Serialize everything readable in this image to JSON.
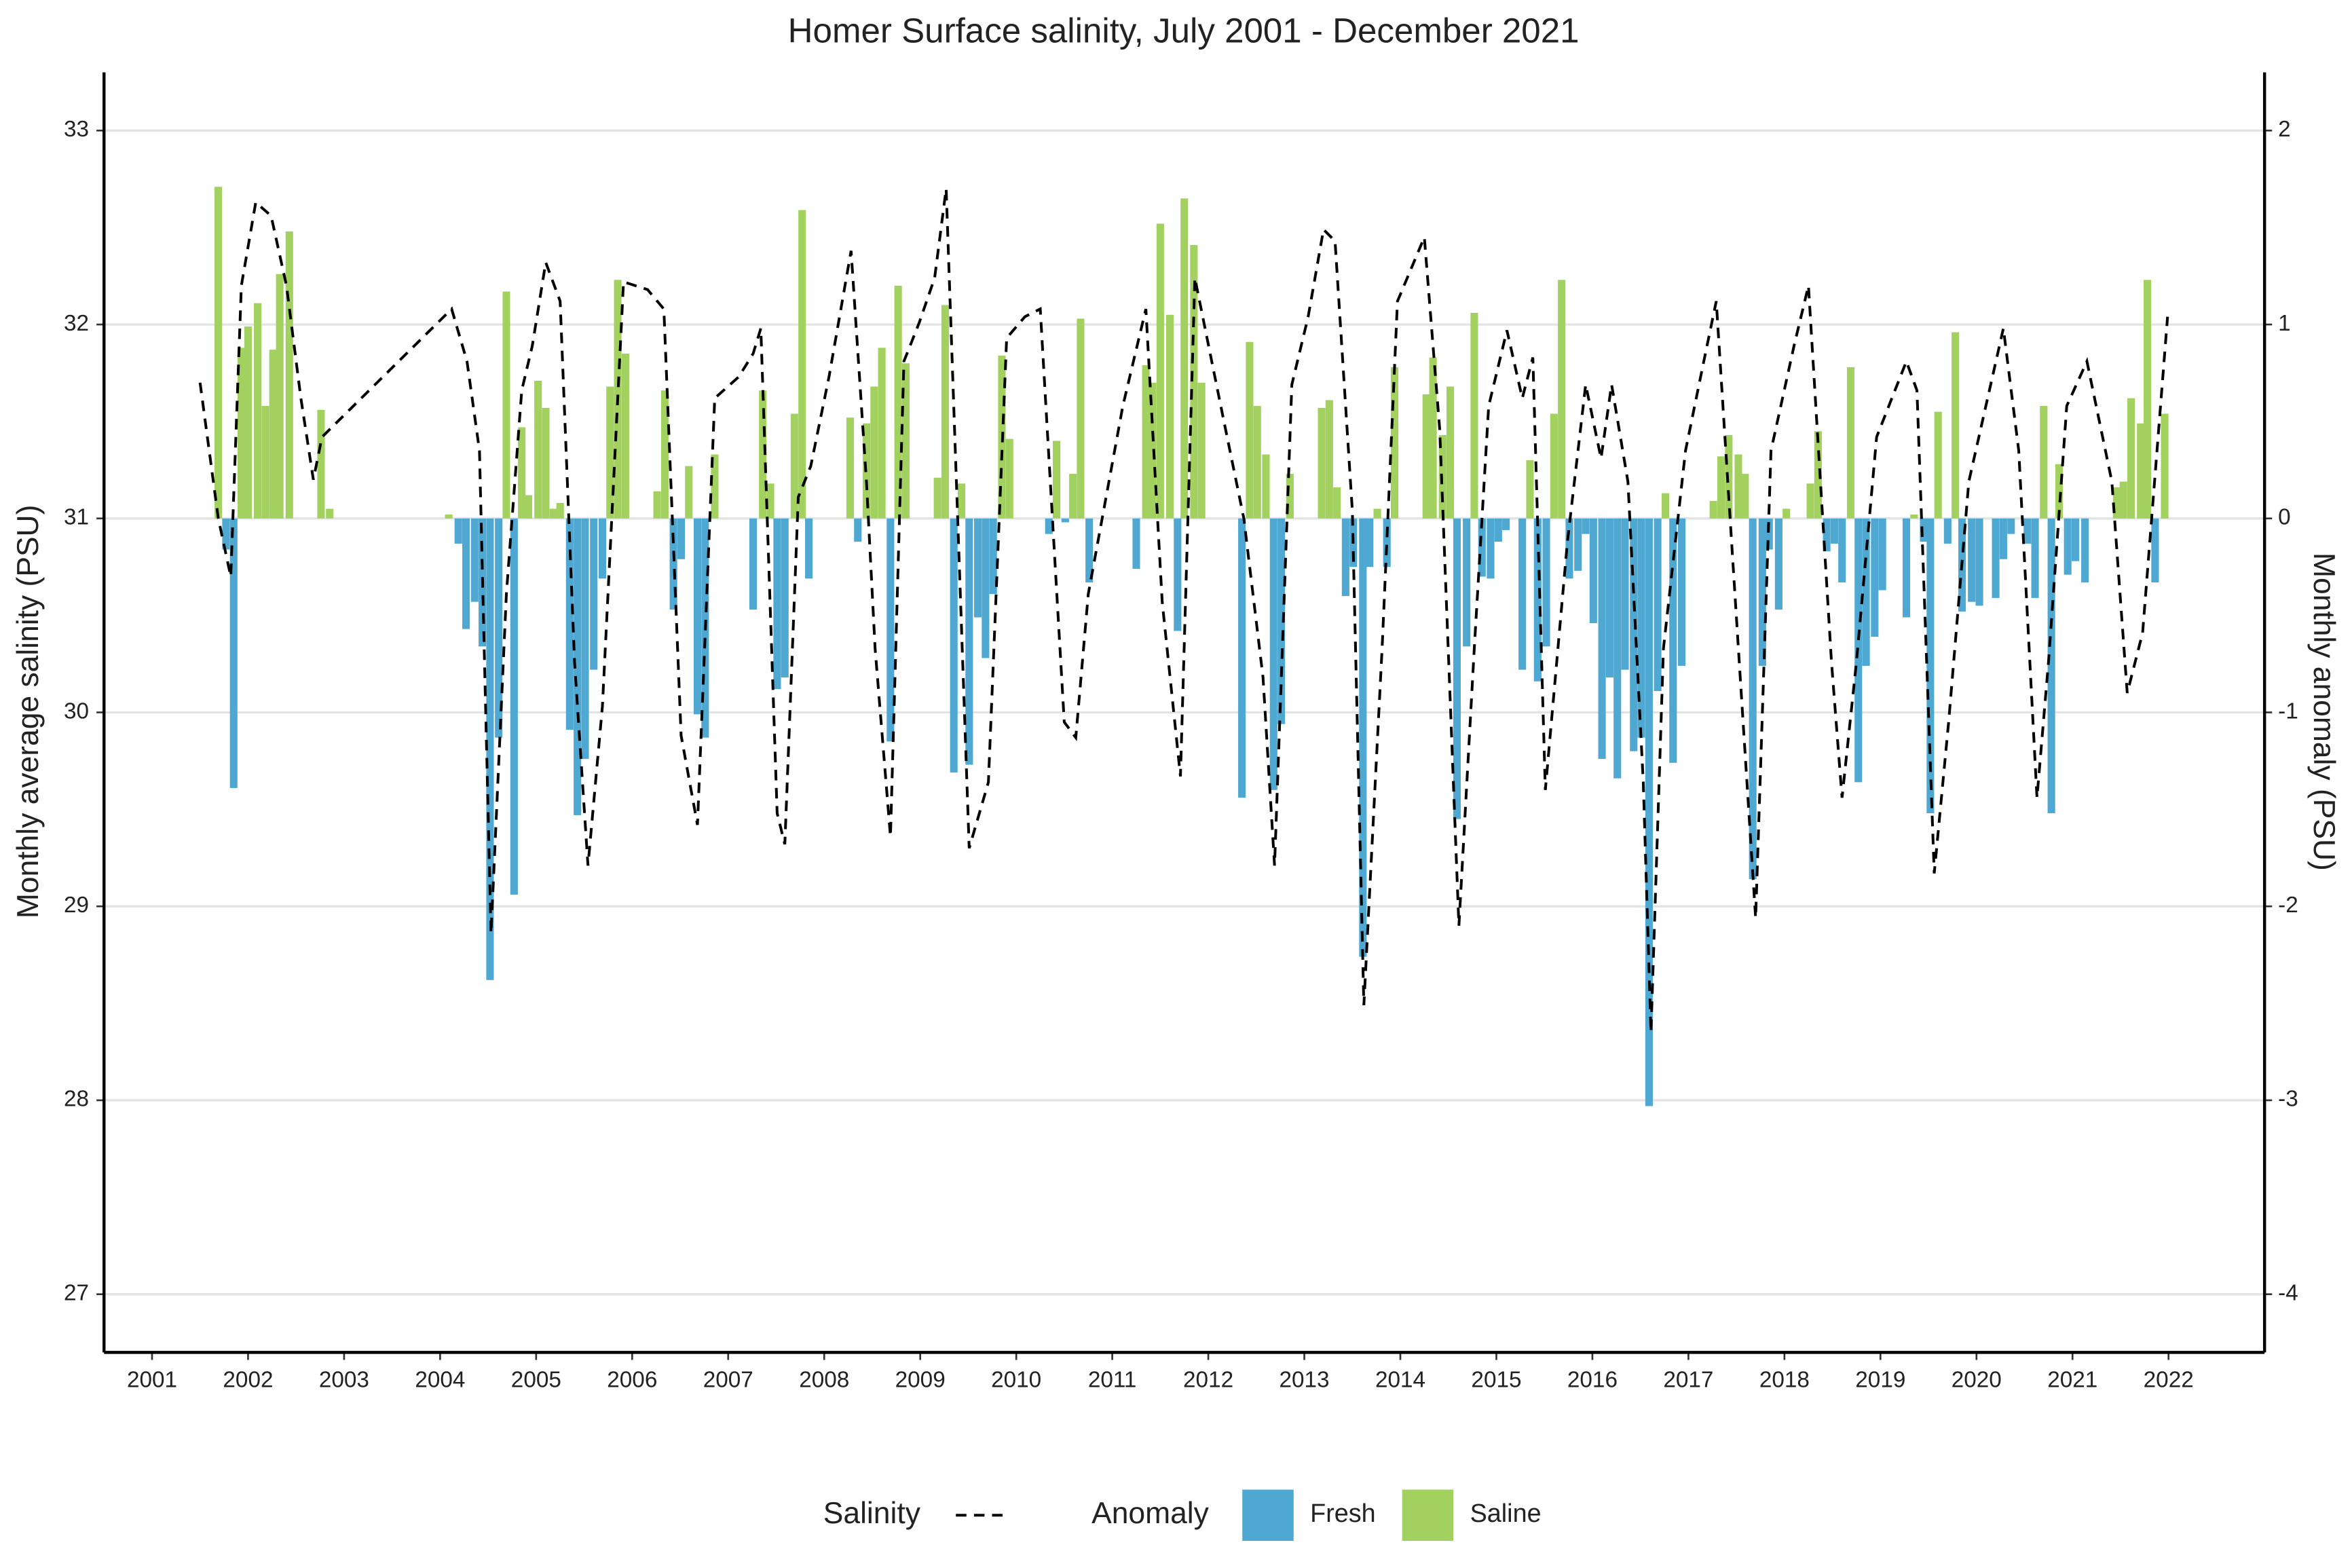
{
  "chart_data": {
    "type": "bar",
    "title": "Homer Surface salinity, July 2001 - December 2021",
    "ylabel": "Monthly average salinity (PSU)",
    "y2label": "Monthly anomaly (PSU)",
    "anomaly_legend_title": "Anomaly",
    "xlim": [
      2000.5,
      2023.0
    ],
    "xticks": [
      2001,
      2002,
      2003,
      2004,
      2005,
      2006,
      2007,
      2008,
      2009,
      2010,
      2011,
      2012,
      2013,
      2014,
      2015,
      2016,
      2017,
      2018,
      2019,
      2020,
      2021,
      2022
    ],
    "ylim": [
      26.7,
      33.3
    ],
    "yticks": [
      27,
      28,
      29,
      30,
      31,
      32,
      33
    ],
    "y2lim": [
      -4.3,
      2.3
    ],
    "y2ticks": [
      -4,
      -3,
      -2,
      -1,
      0,
      1,
      2
    ],
    "grid": true,
    "legend_position": "bottom",
    "series": [
      {
        "name": "Salinity",
        "type": "line",
        "color": "#000000",
        "dashed": true,
        "x": [
          2001.5,
          2001.69,
          2001.82,
          2001.93,
          2002.08,
          2002.24,
          2002.4,
          2002.55,
          2002.68,
          2002.77,
          2004.12,
          2004.28,
          2004.41,
          2004.53,
          2004.69,
          2004.85,
          2004.96,
          2005.1,
          2005.25,
          2005.4,
          2005.54,
          2005.69,
          2005.91,
          2006.16,
          2006.33,
          2006.51,
          2006.68,
          2006.86,
          2007.11,
          2007.26,
          2007.34,
          2007.51,
          2007.59,
          2007.73,
          2007.86,
          2008.05,
          2008.28,
          2008.44,
          2008.53,
          2008.69,
          2008.83,
          2008.99,
          2009.15,
          2009.27,
          2009.51,
          2009.71,
          2009.9,
          2010.09,
          2010.25,
          2010.5,
          2010.62,
          2010.75,
          2011.11,
          2011.35,
          2011.52,
          2011.71,
          2011.86,
          2012.13,
          2012.37,
          2012.57,
          2012.69,
          2012.87,
          2013.04,
          2013.2,
          2013.32,
          2013.5,
          2013.62,
          2013.81,
          2013.97,
          2014.25,
          2014.41,
          2014.61,
          2014.77,
          2014.92,
          2015.11,
          2015.27,
          2015.38,
          2015.51,
          2015.74,
          2015.93,
          2016.09,
          2016.2,
          2016.37,
          2016.53,
          2016.61,
          2016.74,
          2016.97,
          2017.16,
          2017.29,
          2017.55,
          2017.7,
          2017.86,
          2018.1,
          2018.25,
          2018.49,
          2018.6,
          2018.75,
          2018.96,
          2019.27,
          2019.38,
          2019.56,
          2019.71,
          2019.92,
          2020.28,
          2020.44,
          2020.63,
          2020.75,
          2020.94,
          2021.15,
          2021.41,
          2021.57,
          2021.73,
          2021.88,
          2021.99
        ],
        "values": [
          31.7,
          31.0,
          30.7,
          32.2,
          32.63,
          32.56,
          32.2,
          31.62,
          31.2,
          31.42,
          32.08,
          31.81,
          31.35,
          28.86,
          30.61,
          31.66,
          31.89,
          32.32,
          32.12,
          30.26,
          29.21,
          30.03,
          32.22,
          32.18,
          32.08,
          29.88,
          29.42,
          31.62,
          31.73,
          31.85,
          31.98,
          29.48,
          29.32,
          31.11,
          31.27,
          31.73,
          32.38,
          31.19,
          30.33,
          29.36,
          31.81,
          32.01,
          32.24,
          32.7,
          29.3,
          29.64,
          31.93,
          32.04,
          32.08,
          29.95,
          29.87,
          30.61,
          31.58,
          32.08,
          30.57,
          29.67,
          32.24,
          31.58,
          31.0,
          30.18,
          29.21,
          31.69,
          32.04,
          32.49,
          32.43,
          31.04,
          28.49,
          30.33,
          32.12,
          32.45,
          31.46,
          28.9,
          30.33,
          31.58,
          31.97,
          31.62,
          31.83,
          29.6,
          30.88,
          31.69,
          31.31,
          31.69,
          31.19,
          29.64,
          28.35,
          30.33,
          31.35,
          31.81,
          32.12,
          30.1,
          28.94,
          31.35,
          31.89,
          32.2,
          30.26,
          29.56,
          30.26,
          31.42,
          31.81,
          31.66,
          29.17,
          29.95,
          31.19,
          31.98,
          31.35,
          29.56,
          30.26,
          31.58,
          31.81,
          31.19,
          30.1,
          30.41,
          31.35,
          32.04
        ]
      },
      {
        "name": "Fresh",
        "type": "bar",
        "axis": "y2",
        "color": "#4fa8d2",
        "x": [
          2001.77,
          2001.85,
          2004.19,
          2004.27,
          2004.36,
          2004.44,
          2004.52,
          2004.61,
          2004.77,
          2005.35,
          2005.43,
          2005.51,
          2005.6,
          2005.69,
          2006.43,
          2006.51,
          2006.68,
          2006.76,
          2007.26,
          2007.51,
          2007.59,
          2007.84,
          2008.35,
          2008.69,
          2009.35,
          2009.51,
          2009.6,
          2009.68,
          2009.76,
          2010.34,
          2010.51,
          2010.76,
          2011.25,
          2011.68,
          2012.35,
          2012.68,
          2012.76,
          2013.43,
          2013.51,
          2013.61,
          2013.68,
          2013.86,
          2014.59,
          2014.69,
          2014.85,
          2014.94,
          2015.02,
          2015.1,
          2015.27,
          2015.43,
          2015.52,
          2015.76,
          2015.85,
          2015.93,
          2016.01,
          2016.1,
          2016.18,
          2016.26,
          2016.34,
          2016.43,
          2016.51,
          2016.59,
          2016.68,
          2016.84,
          2016.93,
          2017.67,
          2017.77,
          2017.84,
          2017.94,
          2018.44,
          2018.52,
          2018.6,
          2018.77,
          2018.85,
          2018.94,
          2019.02,
          2019.27,
          2019.45,
          2019.52,
          2019.7,
          2019.85,
          2019.95,
          2020.03,
          2020.2,
          2020.28,
          2020.36,
          2020.53,
          2020.61,
          2020.78,
          2020.95,
          2021.03,
          2021.13,
          2021.86
        ],
        "values": [
          -0.16,
          -1.39,
          -0.13,
          -0.57,
          -0.43,
          -0.66,
          -2.38,
          -1.13,
          -1.94,
          -1.09,
          -1.53,
          -1.24,
          -0.78,
          -0.31,
          -0.47,
          -0.21,
          -1.01,
          -1.13,
          -0.47,
          -0.88,
          -0.82,
          -0.31,
          -0.12,
          -1.15,
          -1.31,
          -1.27,
          -0.51,
          -0.72,
          -0.39,
          -0.08,
          -0.02,
          -0.33,
          -0.26,
          -0.58,
          -1.44,
          -1.4,
          -1.06,
          -0.4,
          -0.25,
          -2.26,
          -0.25,
          -0.25,
          -1.55,
          -0.66,
          -0.3,
          -0.31,
          -0.12,
          -0.06,
          -0.78,
          -0.84,
          -0.66,
          -0.31,
          -0.27,
          -0.08,
          -0.54,
          -1.24,
          -0.82,
          -1.34,
          -0.78,
          -1.2,
          -1.13,
          -3.03,
          -0.89,
          -1.26,
          -0.76,
          -1.86,
          -0.76,
          -0.16,
          -0.47,
          -0.17,
          -0.13,
          -0.33,
          -1.36,
          -0.76,
          -0.61,
          -0.37,
          -0.51,
          -0.12,
          -1.52,
          -0.13,
          -0.48,
          -0.43,
          -0.45,
          -0.41,
          -0.21,
          -0.08,
          -0.13,
          -0.41,
          -1.52,
          -0.29,
          -0.22,
          -0.33,
          -0.33
        ]
      },
      {
        "name": "Saline",
        "type": "bar",
        "axis": "y2",
        "color": "#a2d160",
        "x": [
          2001.69,
          2001.93,
          2002.0,
          2002.1,
          2002.18,
          2002.26,
          2002.33,
          2002.43,
          2002.76,
          2002.85,
          2004.09,
          2004.69,
          2004.85,
          2004.92,
          2005.02,
          2005.1,
          2005.18,
          2005.25,
          2005.77,
          2005.85,
          2005.93,
          2006.26,
          2006.34,
          2006.59,
          2006.86,
          2007.36,
          2007.44,
          2007.69,
          2007.77,
          2008.27,
          2008.44,
          2008.52,
          2008.6,
          2008.77,
          2008.85,
          2009.18,
          2009.26,
          2009.43,
          2009.85,
          2009.93,
          2010.42,
          2010.59,
          2010.67,
          2011.35,
          2011.42,
          2011.5,
          2011.6,
          2011.75,
          2011.85,
          2011.93,
          2012.43,
          2012.51,
          2012.6,
          2012.85,
          2013.18,
          2013.26,
          2013.34,
          2013.76,
          2013.94,
          2014.27,
          2014.34,
          2014.44,
          2014.52,
          2014.77,
          2015.35,
          2015.6,
          2015.68,
          2016.76,
          2017.26,
          2017.34,
          2017.42,
          2017.52,
          2017.59,
          2018.02,
          2018.27,
          2018.35,
          2018.69,
          2019.35,
          2019.6,
          2019.78,
          2020.7,
          2020.86,
          2021.46,
          2021.53,
          2021.61,
          2021.71,
          2021.78,
          2021.96
        ],
        "values": [
          1.71,
          0.88,
          0.99,
          1.11,
          0.58,
          0.87,
          1.26,
          1.48,
          0.56,
          0.05,
          0.02,
          1.17,
          0.47,
          0.12,
          0.71,
          0.57,
          0.05,
          0.08,
          0.68,
          1.23,
          0.85,
          0.14,
          0.66,
          0.27,
          0.33,
          0.66,
          0.18,
          0.54,
          1.59,
          0.52,
          0.49,
          0.68,
          0.88,
          1.2,
          0.8,
          0.21,
          1.1,
          0.18,
          0.84,
          0.41,
          0.4,
          0.23,
          1.03,
          0.79,
          0.7,
          1.52,
          1.05,
          1.65,
          1.41,
          0.7,
          0.91,
          0.58,
          0.33,
          0.23,
          0.57,
          0.61,
          0.16,
          0.05,
          0.78,
          0.64,
          0.83,
          0.43,
          0.68,
          1.06,
          0.3,
          0.54,
          1.23,
          0.13,
          0.09,
          0.32,
          0.43,
          0.33,
          0.23,
          0.05,
          0.18,
          0.45,
          0.78,
          0.02,
          0.55,
          0.96,
          0.58,
          0.28,
          0.16,
          0.19,
          0.62,
          0.49,
          1.23,
          0.54
        ]
      }
    ]
  }
}
